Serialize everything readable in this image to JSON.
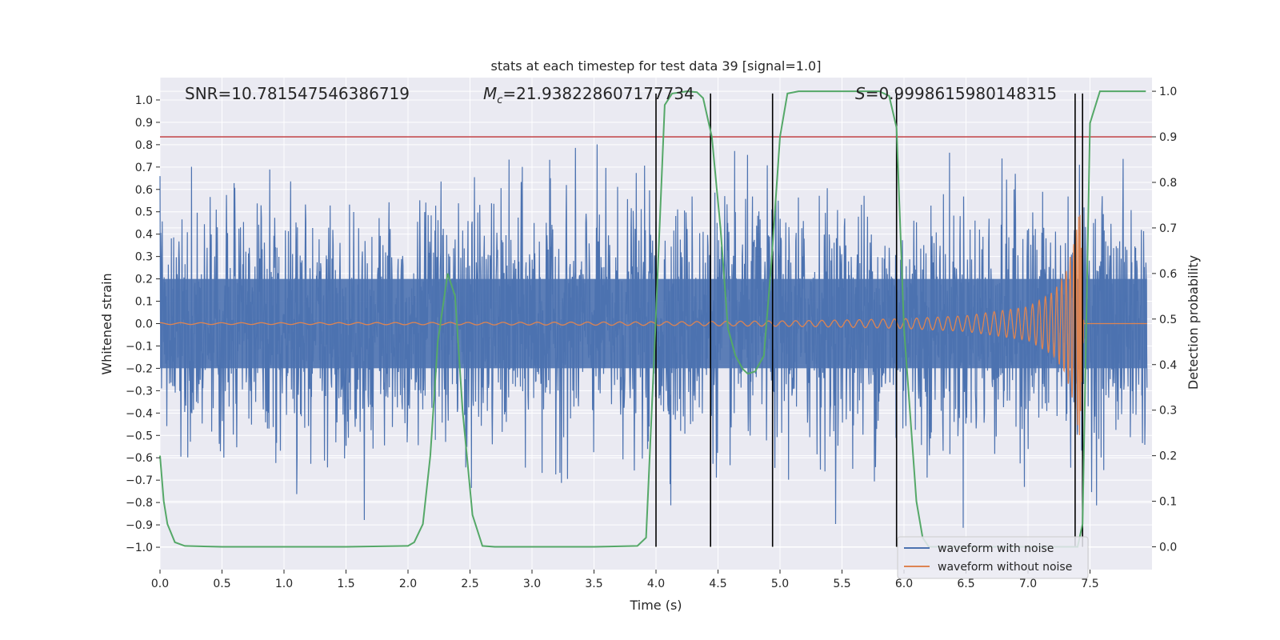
{
  "chart_data": {
    "type": "line",
    "title": "stats at each timestep for test data 39 [signal=1.0]",
    "xlabel": "Time (s)",
    "ylabel": "Whitened strain",
    "y2label": "Detection probability",
    "xlim": [
      0.0,
      8.0
    ],
    "ylim": [
      -1.1,
      1.1
    ],
    "y2lim": [
      -0.05,
      1.03
    ],
    "x_ticks": [
      0.0,
      0.5,
      1.0,
      1.5,
      2.0,
      2.5,
      3.0,
      3.5,
      4.0,
      4.5,
      5.0,
      5.5,
      6.0,
      6.5,
      7.0,
      7.5
    ],
    "x_tick_labels": [
      "0.0",
      "0.5",
      "1.0",
      "1.5",
      "2.0",
      "2.5",
      "3.0",
      "3.5",
      "4.0",
      "4.5",
      "5.0",
      "5.5",
      "6.0",
      "6.5",
      "7.0",
      "7.5"
    ],
    "y_ticks": [
      1.0,
      0.9,
      0.8,
      0.7,
      0.6,
      0.5,
      0.4,
      0.3,
      0.2,
      0.1,
      0.0,
      -0.1,
      -0.2,
      -0.3,
      -0.4,
      -0.5,
      -0.6,
      -0.7,
      -0.8,
      -0.9,
      -1.0
    ],
    "y_tick_labels": [
      "1.0",
      "0.9",
      "0.8",
      "0.7",
      "0.6",
      "0.5",
      "0.4",
      "0.3",
      "0.2",
      "0.1",
      "0.0",
      "−0.1",
      "−0.2",
      "−0.3",
      "−0.4",
      "−0.5",
      "−0.6",
      "−0.7",
      "−0.8",
      "−0.9",
      "−1.0"
    ],
    "y2_ticks": [
      1.0,
      0.9,
      0.8,
      0.7,
      0.6,
      0.5,
      0.4,
      0.3,
      0.2,
      0.1,
      0.0
    ],
    "y2_tick_labels": [
      "1.0",
      "0.9",
      "0.8",
      "0.7",
      "0.6",
      "0.5",
      "0.4",
      "0.3",
      "0.2",
      "0.1",
      "0.0"
    ],
    "annotations": {
      "snr": "SNR=10.781547546386719",
      "mc_symbol": "M",
      "mc_subscript": "c",
      "mc_value": "=21.938228607177734",
      "s_symbol": "S",
      "s_value": "=0.9998615980148315"
    },
    "threshold": {
      "value": 0.9,
      "axis": "y2",
      "color": "#c44e52"
    },
    "vertical_lines": [
      4.0,
      4.44,
      4.94,
      5.94,
      7.38,
      7.44
    ],
    "noisy_waveform": {
      "name": "waveform with noise",
      "color": "#4c72b0",
      "description": "dense whitened strain noise, core amplitude ~0.4, spikes up to ~0.88"
    },
    "clean_waveform": {
      "name": "waveform without noise",
      "color": "#dd8452",
      "chirp_peak_time": 7.42,
      "peak_amplitude": 0.52,
      "points": [
        [
          0.0,
          0.004
        ],
        [
          1.0,
          0.004
        ],
        [
          2.0,
          0.005
        ],
        [
          3.0,
          0.006
        ],
        [
          4.0,
          0.008
        ],
        [
          5.0,
          0.012
        ],
        [
          5.5,
          0.016
        ],
        [
          6.0,
          0.022
        ],
        [
          6.5,
          0.035
        ],
        [
          7.0,
          0.075
        ],
        [
          7.2,
          0.14
        ],
        [
          7.3,
          0.22
        ],
        [
          7.38,
          0.38
        ],
        [
          7.42,
          0.52
        ],
        [
          7.45,
          0.0
        ]
      ]
    },
    "detection_probability": {
      "name": "detection probability",
      "color": "#55a868",
      "points": [
        [
          0.0,
          0.2
        ],
        [
          0.03,
          0.1
        ],
        [
          0.06,
          0.05
        ],
        [
          0.12,
          0.01
        ],
        [
          0.2,
          0.002
        ],
        [
          0.5,
          0.0
        ],
        [
          1.0,
          0.0
        ],
        [
          1.5,
          0.0
        ],
        [
          2.0,
          0.002
        ],
        [
          2.05,
          0.01
        ],
        [
          2.12,
          0.05
        ],
        [
          2.18,
          0.2
        ],
        [
          2.24,
          0.45
        ],
        [
          2.32,
          0.6
        ],
        [
          2.38,
          0.55
        ],
        [
          2.44,
          0.3
        ],
        [
          2.52,
          0.07
        ],
        [
          2.6,
          0.002
        ],
        [
          2.7,
          0.0
        ],
        [
          3.5,
          0.0
        ],
        [
          3.85,
          0.002
        ],
        [
          3.92,
          0.02
        ],
        [
          3.99,
          0.45
        ],
        [
          4.07,
          0.97
        ],
        [
          4.13,
          0.995
        ],
        [
          4.25,
          1.0
        ],
        [
          4.33,
          0.998
        ],
        [
          4.38,
          0.985
        ],
        [
          4.45,
          0.9
        ],
        [
          4.52,
          0.7
        ],
        [
          4.58,
          0.48
        ],
        [
          4.64,
          0.42
        ],
        [
          4.7,
          0.39
        ],
        [
          4.74,
          0.38
        ],
        [
          4.8,
          0.385
        ],
        [
          4.87,
          0.42
        ],
        [
          4.93,
          0.62
        ],
        [
          5.0,
          0.9
        ],
        [
          5.06,
          0.995
        ],
        [
          5.15,
          1.0
        ],
        [
          5.8,
          1.0
        ],
        [
          5.88,
          0.99
        ],
        [
          5.94,
          0.92
        ],
        [
          6.0,
          0.48
        ],
        [
          6.1,
          0.1
        ],
        [
          6.15,
          0.02
        ],
        [
          6.2,
          0.0
        ],
        [
          7.4,
          0.0
        ],
        [
          7.44,
          0.05
        ],
        [
          7.5,
          0.93
        ],
        [
          7.58,
          1.0
        ],
        [
          7.95,
          1.0
        ]
      ]
    },
    "legend": {
      "position": "lower-right",
      "entries": [
        {
          "label": "waveform with noise",
          "color": "#4c72b0"
        },
        {
          "label": "waveform without noise",
          "color": "#dd8452"
        }
      ]
    },
    "style": {
      "background": "#eaeaf2",
      "grid": true,
      "grid_color": "#ffffff",
      "event_line_color": "#000000"
    }
  }
}
